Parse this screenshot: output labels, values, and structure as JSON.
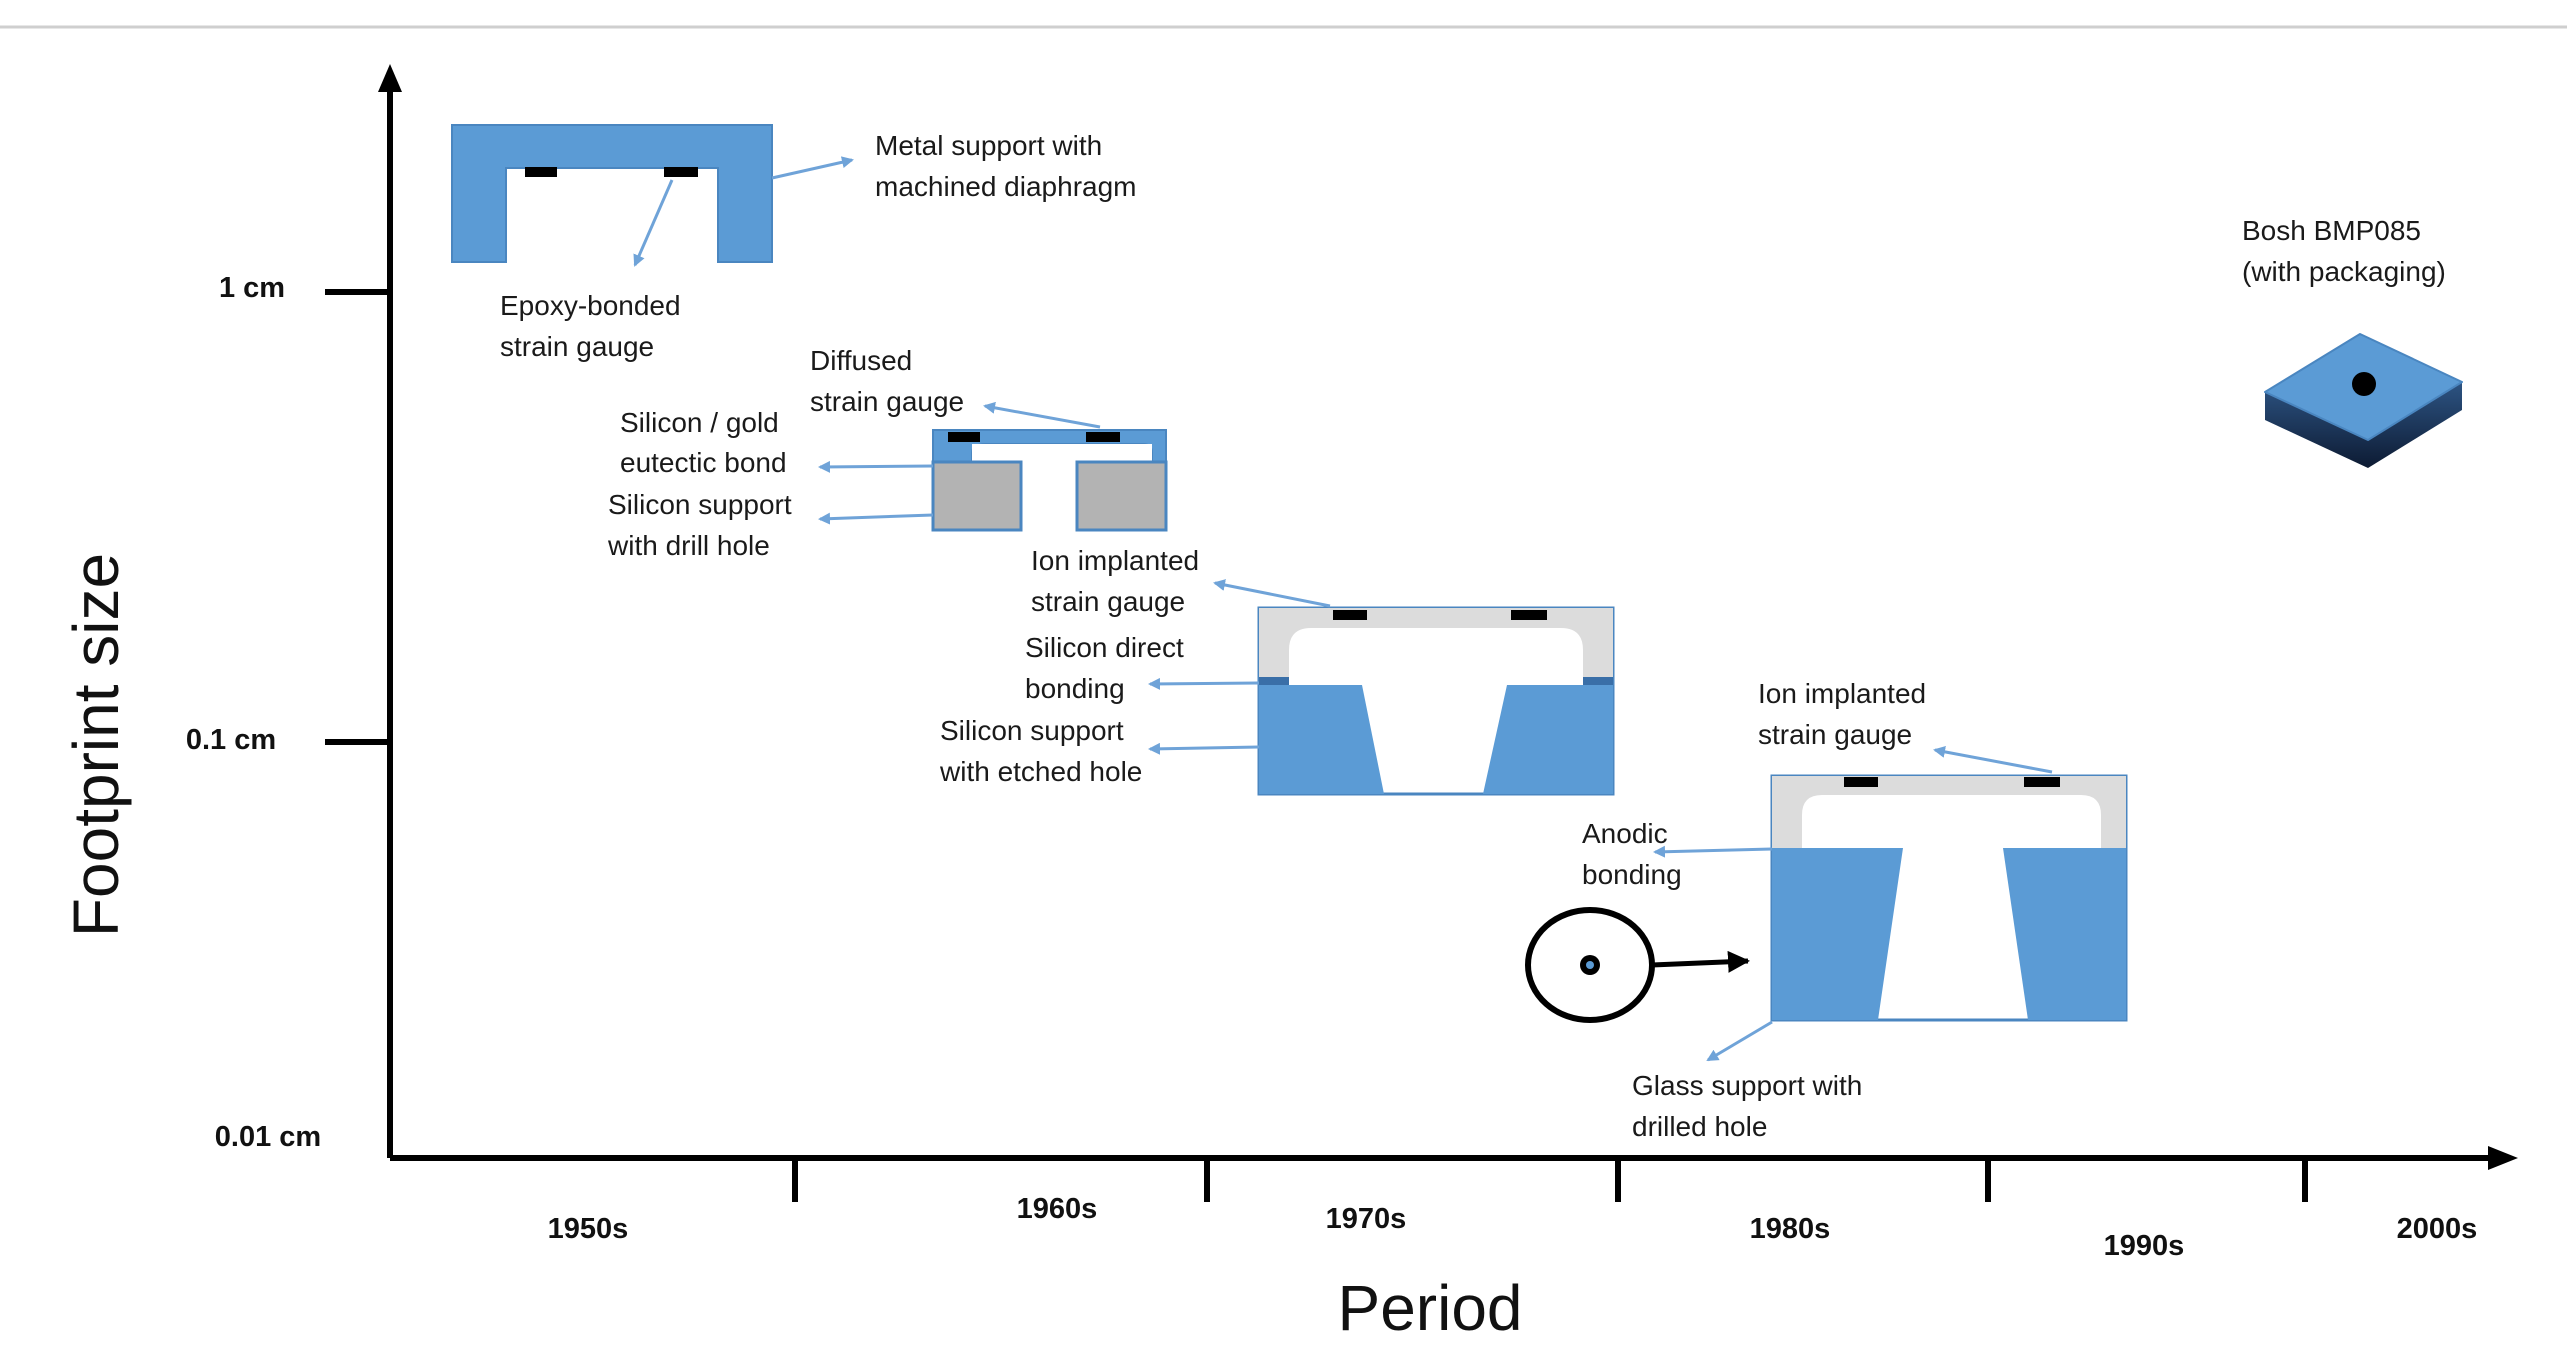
{
  "axes": {
    "y_title": "Footprint size",
    "x_title": "Period",
    "y_ticks": [
      "1 cm",
      "0.1 cm",
      "0.01 cm"
    ],
    "x_ticks": [
      "1950s",
      "1960s",
      "1970s",
      "1980s",
      "1990s",
      "2000s"
    ]
  },
  "labels": {
    "metal_support": [
      "Metal support with",
      "machined diaphragm"
    ],
    "epoxy_gauge": [
      "Epoxy-bonded",
      "strain gauge"
    ],
    "diffused_gauge": [
      "Diffused",
      "strain gauge"
    ],
    "eutectic_bond": [
      "Silicon / gold",
      "eutectic bond"
    ],
    "si_drill": [
      "Silicon support",
      "with drill hole"
    ],
    "ion_gauge_1": [
      "Ion implanted",
      "strain gauge"
    ],
    "si_direct": [
      "Silicon direct",
      "bonding"
    ],
    "si_etched": [
      "Silicon support",
      "with etched hole"
    ],
    "ion_gauge_2": [
      "Ion implanted",
      "strain gauge"
    ],
    "anodic": [
      "Anodic",
      "bonding"
    ],
    "glass_support": [
      "Glass support with",
      "drilled hole"
    ],
    "bosch": [
      "Bosh BMP085",
      "(with packaging)"
    ]
  },
  "colors": {
    "blue": "#5b9bd5",
    "blue_dark": "#3a6fa8",
    "gray": "#b3b3b3",
    "light_gray": "#dcdcdc",
    "black": "#000000",
    "arrow": "#6fa3d8"
  }
}
